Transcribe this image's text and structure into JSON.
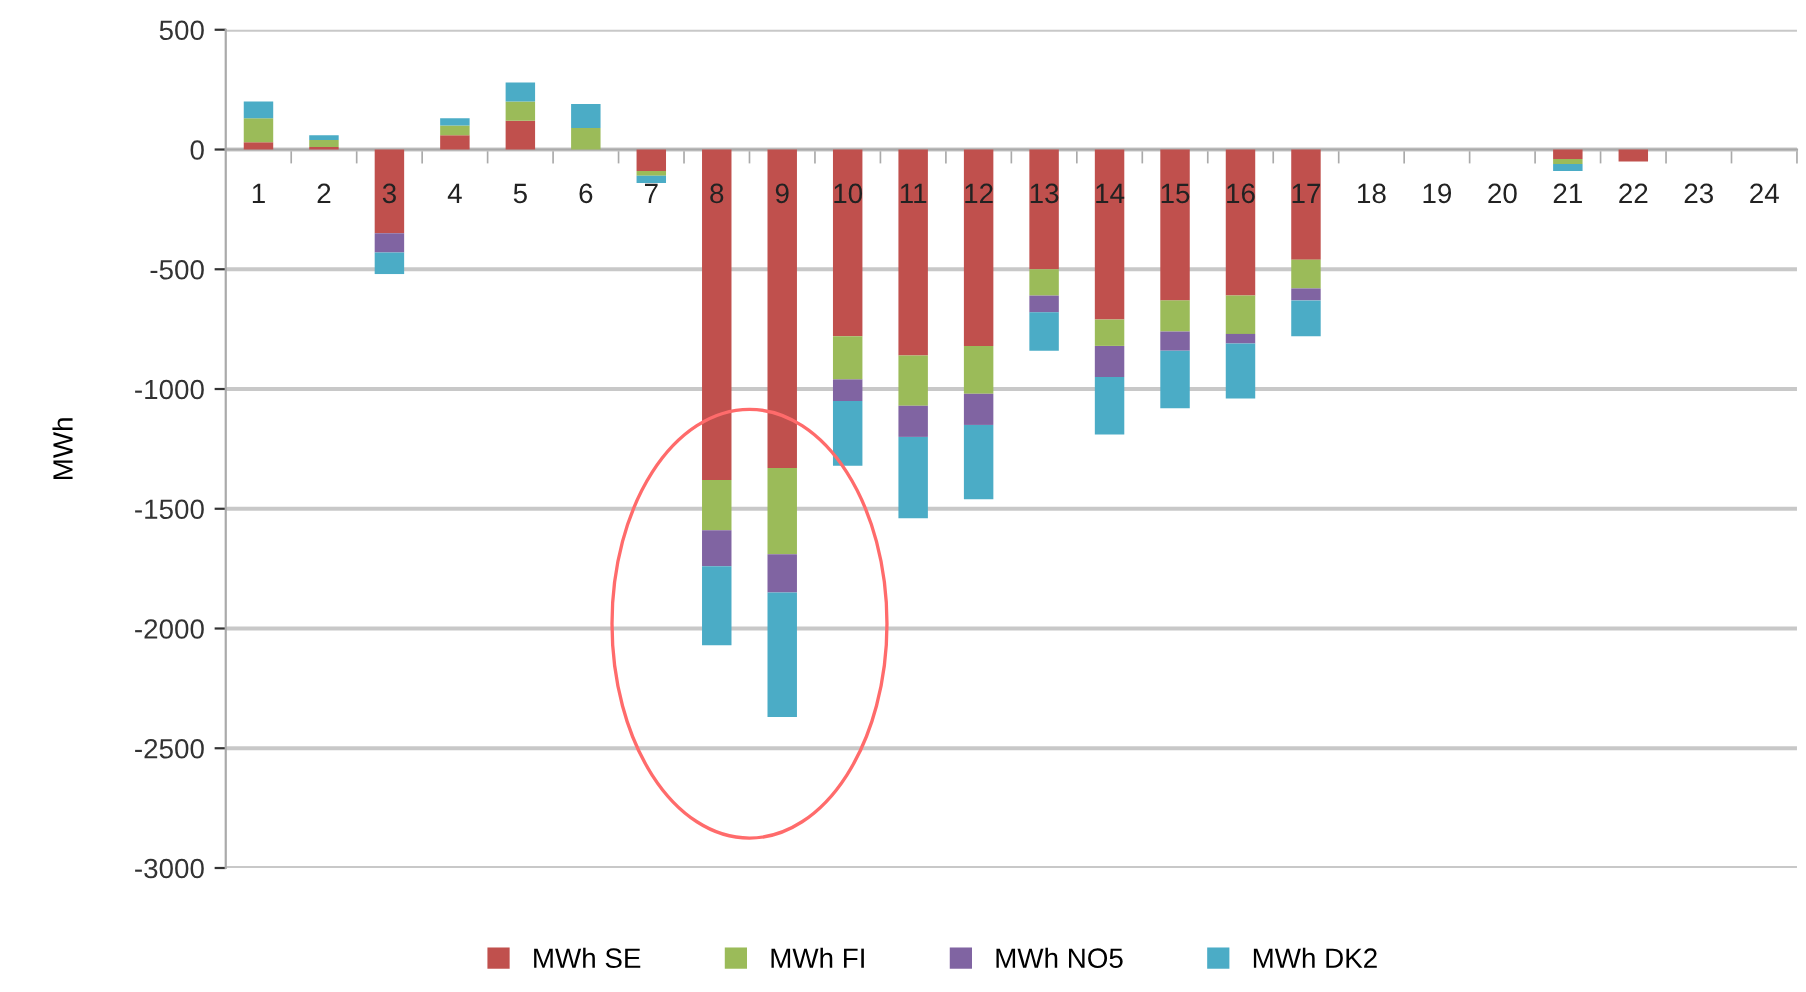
{
  "chart_data": {
    "type": "bar",
    "stacked": true,
    "ylabel": "MWh",
    "categories": [
      "1",
      "2",
      "3",
      "4",
      "5",
      "6",
      "7",
      "8",
      "9",
      "10",
      "11",
      "12",
      "13",
      "14",
      "15",
      "16",
      "17",
      "18",
      "19",
      "20",
      "21",
      "22",
      "23",
      "24"
    ],
    "series": [
      {
        "name": "MWh SE",
        "color": "#c0504d",
        "values": [
          30,
          10,
          -350,
          60,
          120,
          0,
          -90,
          -1380,
          -1330,
          -780,
          -860,
          -820,
          -500,
          -710,
          -630,
          -610,
          -460,
          0,
          0,
          0,
          -40,
          -50,
          0,
          0
        ]
      },
      {
        "name": "MWh FI",
        "color": "#9bbb59",
        "values": [
          100,
          30,
          0,
          40,
          80,
          90,
          -20,
          -210,
          -360,
          -180,
          -210,
          -200,
          -110,
          -110,
          -130,
          -160,
          -120,
          0,
          0,
          0,
          -20,
          0,
          0,
          0
        ]
      },
      {
        "name": "MWh NO5",
        "color": "#8064a2",
        "values": [
          0,
          0,
          -80,
          0,
          0,
          0,
          0,
          -150,
          -160,
          -90,
          -130,
          -130,
          -70,
          -130,
          -80,
          -40,
          -50,
          0,
          0,
          0,
          0,
          0,
          0,
          0
        ]
      },
      {
        "name": "MWh DK2",
        "color": "#4bacc6",
        "values": [
          70,
          20,
          -90,
          30,
          80,
          100,
          -30,
          -330,
          -520,
          -270,
          -340,
          -310,
          -160,
          -240,
          -240,
          -230,
          -150,
          0,
          0,
          0,
          -30,
          0,
          0,
          0
        ]
      }
    ],
    "ylim": [
      -3000,
      500
    ],
    "yticks": [
      -3000,
      -2500,
      -2000,
      -1500,
      -1000,
      -500,
      0,
      500
    ],
    "grid": "y",
    "legend": "bottom"
  }
}
